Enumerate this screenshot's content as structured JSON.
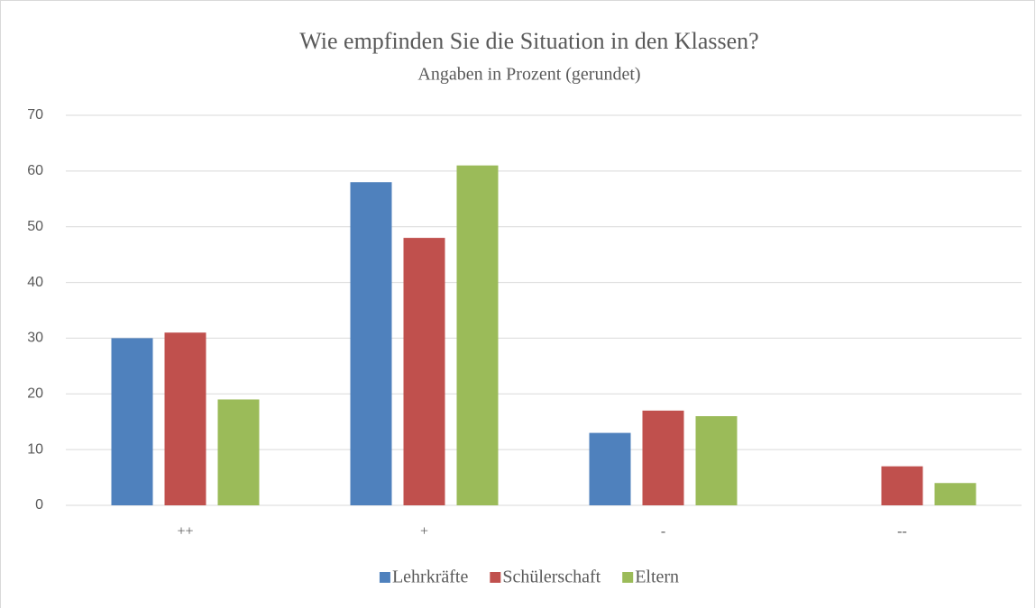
{
  "chart_data": {
    "type": "bar",
    "title": "Wie empfinden Sie die Situation in den Klassen?",
    "subtitle": "Angaben in Prozent (gerundet)",
    "categories": [
      "++",
      "+",
      "-",
      "--"
    ],
    "series": [
      {
        "name": "Lehrkräfte",
        "color": "#4f81bd",
        "values": [
          30,
          58,
          13,
          0
        ]
      },
      {
        "name": "Schülerschaft",
        "color": "#c0504d",
        "values": [
          31,
          48,
          17,
          7
        ]
      },
      {
        "name": "Eltern",
        "color": "#9bbb59",
        "values": [
          19,
          61,
          16,
          4
        ]
      }
    ],
    "ylim": [
      0,
      70
    ],
    "yticks": [
      0,
      10,
      20,
      30,
      40,
      50,
      60,
      70
    ],
    "grid": true,
    "legend": "bottom"
  }
}
